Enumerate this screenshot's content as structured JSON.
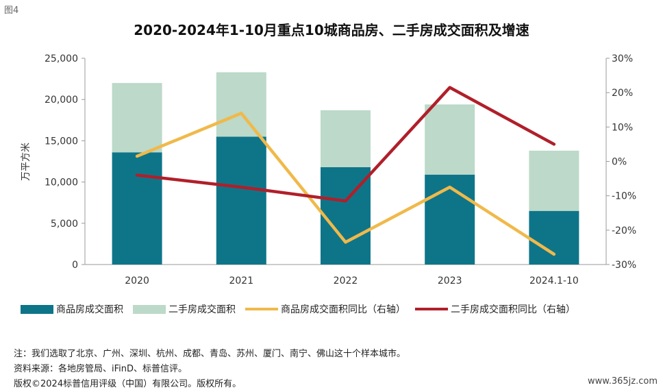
{
  "figure_label": "图4",
  "watermark": "www.365jz.com",
  "notes": [
    "注：我们选取了北京、广州、深圳、杭州、成都、青岛、苏州、厦门、南宁、佛山这十个样本城市。",
    "资料来源：各地房管局、iFinD、标普信评。",
    "版权©2024标普信用评级（中国）有限公司。版权所有。"
  ],
  "colors": {
    "new_bar": "#0e7589",
    "second_bar": "#bcd9c9",
    "new_yoy": "#f0b94a",
    "second_yoy": "#b01f2a",
    "axis": "#999999"
  },
  "chart_data": {
    "type": "bar",
    "title": "2020-2024年1-10月重点10城商品房、二手房成交面积及增速",
    "ylabel": "万平方米",
    "categories": [
      "2020",
      "2021",
      "2022",
      "2023",
      "2024.1-10"
    ],
    "ylim": [
      0,
      25000
    ],
    "yticks": [
      "0",
      "5,000",
      "10,000",
      "15,000",
      "20,000",
      "25,000"
    ],
    "y2lim": [
      -30,
      30
    ],
    "y2ticks": [
      "-30%",
      "-20%",
      "-10%",
      "0%",
      "10%",
      "20%",
      "30%"
    ],
    "stacked": true,
    "series": [
      {
        "name": "商品房成交面积",
        "kind": "bar",
        "axis": "left",
        "values": [
          13600,
          15500,
          11800,
          10900,
          6500
        ]
      },
      {
        "name": "二手房成交面积",
        "kind": "bar",
        "axis": "left",
        "values": [
          8400,
          7800,
          6900,
          8500,
          7300
        ]
      },
      {
        "name": "商品房成交面积同比（右轴）",
        "kind": "line",
        "axis": "right",
        "values": [
          1.5,
          14,
          -23.5,
          -7.5,
          -27
        ]
      },
      {
        "name": "二手房成交面积同比（右轴）",
        "kind": "line",
        "axis": "right",
        "values": [
          -4,
          -7.5,
          -11.5,
          21.5,
          5
        ]
      }
    ]
  }
}
